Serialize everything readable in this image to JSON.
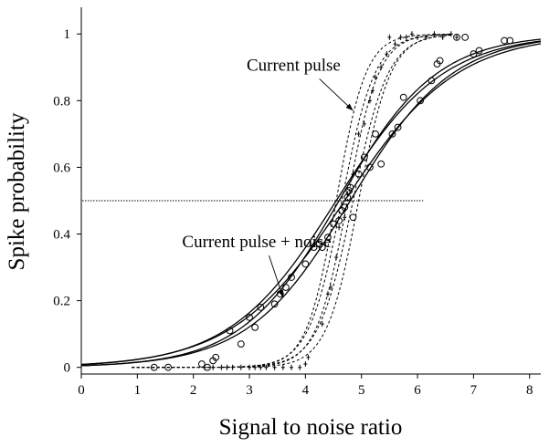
{
  "chart_data": {
    "type": "line",
    "title": "",
    "xlabel": "Signal to noise ratio",
    "ylabel": "Spike probability",
    "xlim": [
      0,
      8.2
    ],
    "ylim": [
      -0.02,
      1.08
    ],
    "xticks": [
      "0",
      "1",
      "2",
      "3",
      "4",
      "5",
      "6",
      "7",
      "8"
    ],
    "yticks": [
      "0",
      "0.2",
      "0.4",
      "0.6",
      "0.8",
      "1"
    ],
    "grid": false,
    "reference_line": {
      "y": 0.5,
      "x_range": [
        0,
        6.1
      ],
      "style": "dotted"
    },
    "annotations": [
      {
        "text": "Current pulse",
        "text_at": [
          2.95,
          0.89
        ],
        "arrow_to": [
          4.85,
          0.77
        ]
      },
      {
        "text": "Current pulse + noise",
        "text_at": [
          1.8,
          0.36
        ],
        "arrow_to": [
          3.6,
          0.21
        ]
      }
    ],
    "series": [
      {
        "group": "Current pulse + noise",
        "style": "solid",
        "x0": 4.55,
        "k": 1.05,
        "x": [
          0,
          8.2
        ]
      },
      {
        "group": "Current pulse + noise",
        "style": "solid",
        "x0": 4.6,
        "k": 1.15,
        "x": [
          0,
          8.2
        ]
      },
      {
        "group": "Current pulse + noise",
        "style": "solid",
        "x0": 4.7,
        "k": 1.0,
        "x": [
          0,
          8.2
        ]
      },
      {
        "group": "Current pulse + noise",
        "style": "solid",
        "x0": 4.8,
        "k": 1.1,
        "x": [
          0,
          8.2
        ]
      },
      {
        "group": "Current pulse",
        "style": "dashed",
        "x0": 4.55,
        "k": 3.8,
        "x": [
          0.9,
          6.6
        ]
      },
      {
        "group": "Current pulse",
        "style": "dashed",
        "x0": 4.65,
        "k": 3.4,
        "x": [
          0.9,
          6.6
        ]
      },
      {
        "group": "Current pulse",
        "style": "dashed",
        "x0": 4.75,
        "k": 3.6,
        "x": [
          0.9,
          6.6
        ]
      },
      {
        "group": "Current pulse",
        "style": "dashed",
        "x0": 4.85,
        "k": 3.2,
        "x": [
          0.9,
          6.6
        ]
      },
      {
        "group": "Current pulse",
        "style": "dashed",
        "x0": 4.95,
        "k": 3.5,
        "x": [
          0.9,
          6.6
        ]
      }
    ],
    "points_noise": [
      [
        1.3,
        0.0
      ],
      [
        1.55,
        0.0
      ],
      [
        2.15,
        0.01
      ],
      [
        2.25,
        0.0
      ],
      [
        2.35,
        0.02
      ],
      [
        2.4,
        0.03
      ],
      [
        2.65,
        0.11
      ],
      [
        2.85,
        0.07
      ],
      [
        3.0,
        0.15
      ],
      [
        3.1,
        0.12
      ],
      [
        3.2,
        0.18
      ],
      [
        3.45,
        0.19
      ],
      [
        3.55,
        0.22
      ],
      [
        3.65,
        0.24
      ],
      [
        3.75,
        0.27
      ],
      [
        4.0,
        0.31
      ],
      [
        4.15,
        0.36
      ],
      [
        4.25,
        0.37
      ],
      [
        4.3,
        0.36
      ],
      [
        4.4,
        0.39
      ],
      [
        4.5,
        0.43
      ],
      [
        4.6,
        0.44
      ],
      [
        4.65,
        0.47
      ],
      [
        4.7,
        0.48
      ],
      [
        4.75,
        0.51
      ],
      [
        4.78,
        0.53
      ],
      [
        4.8,
        0.54
      ],
      [
        4.85,
        0.45
      ],
      [
        4.95,
        0.58
      ],
      [
        5.05,
        0.63
      ],
      [
        5.15,
        0.6
      ],
      [
        5.25,
        0.7
      ],
      [
        5.35,
        0.61
      ],
      [
        5.55,
        0.7
      ],
      [
        5.65,
        0.72
      ],
      [
        5.75,
        0.81
      ],
      [
        6.05,
        0.8
      ],
      [
        6.25,
        0.86
      ],
      [
        6.35,
        0.91
      ],
      [
        6.4,
        0.92
      ],
      [
        6.7,
        0.99
      ],
      [
        6.85,
        0.99
      ],
      [
        7.0,
        0.94
      ],
      [
        7.1,
        0.95
      ],
      [
        7.55,
        0.98
      ],
      [
        7.65,
        0.98
      ]
    ],
    "points_pulse": [
      [
        2.2,
        0.0
      ],
      [
        2.35,
        0.0
      ],
      [
        2.5,
        0.0
      ],
      [
        2.6,
        0.0
      ],
      [
        2.7,
        0.0
      ],
      [
        2.85,
        0.0
      ],
      [
        3.0,
        0.0
      ],
      [
        3.1,
        0.0
      ],
      [
        3.2,
        0.0
      ],
      [
        3.3,
        0.0
      ],
      [
        3.45,
        0.0
      ],
      [
        3.6,
        0.0
      ],
      [
        3.75,
        0.0
      ],
      [
        3.9,
        0.0
      ],
      [
        4.0,
        0.01
      ],
      [
        4.05,
        0.03
      ],
      [
        4.3,
        0.13
      ],
      [
        4.4,
        0.22
      ],
      [
        4.45,
        0.24
      ],
      [
        4.55,
        0.33
      ],
      [
        4.6,
        0.42
      ],
      [
        4.7,
        0.45
      ],
      [
        4.75,
        0.52
      ],
      [
        4.85,
        0.58
      ],
      [
        4.95,
        0.7
      ],
      [
        5.05,
        0.73
      ],
      [
        5.15,
        0.8
      ],
      [
        5.2,
        0.83
      ],
      [
        5.25,
        0.87
      ],
      [
        5.35,
        0.9
      ],
      [
        5.45,
        0.94
      ],
      [
        5.5,
        0.99
      ],
      [
        5.6,
        0.97
      ],
      [
        5.7,
        0.99
      ],
      [
        5.8,
        0.99
      ],
      [
        5.9,
        1.0
      ],
      [
        6.0,
        0.99
      ],
      [
        6.15,
        0.99
      ],
      [
        6.3,
        1.0
      ],
      [
        6.45,
        0.99
      ],
      [
        6.6,
        1.0
      ],
      [
        6.7,
        0.99
      ]
    ]
  }
}
